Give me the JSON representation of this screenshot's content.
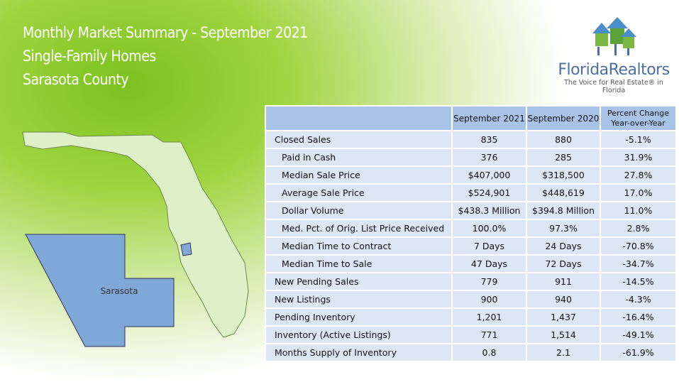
{
  "header": {
    "title_lines": [
      "Monthly Market Summary - September 2021",
      "Single-Family Homes",
      "Sarasota County"
    ]
  },
  "logo": {
    "name": "FloridaRealtors",
    "tagline": "The Voice for Real Estate® in Florida"
  },
  "map": {
    "label": "Sarasota"
  },
  "table": {
    "columns": [
      "September 2021",
      "September 2020",
      "Percent Change Year-over-Year"
    ],
    "rows": [
      [
        "Closed Sales",
        "835",
        "880",
        "-5.1%"
      ],
      [
        "Paid in Cash",
        "376",
        "285",
        "31.9%"
      ],
      [
        "Median Sale Price",
        "$407,000",
        "$318,500",
        "27.8%"
      ],
      [
        "Average Sale Price",
        "$524,901",
        "$448,619",
        "17.0%"
      ],
      [
        "Dollar Volume",
        "$438.3 Million",
        "$394.8 Million",
        "11.0%"
      ],
      [
        "Med. Pct. of Orig. List Price Received",
        "100.0%",
        "97.3%",
        "2.8%"
      ],
      [
        "Median Time to Contract",
        "7 Days",
        "24 Days",
        "-70.8%"
      ],
      [
        "Median Time to Sale",
        "47 Days",
        "72 Days",
        "-34.7%"
      ],
      [
        "New Pending Sales",
        "779",
        "911",
        "-14.5%"
      ],
      [
        "New Listings",
        "900",
        "940",
        "-4.3%"
      ],
      [
        "Pending Inventory",
        "1,201",
        "1,437",
        "-16.4%"
      ],
      [
        "Inventory (Active Listings)",
        "771",
        "1,514",
        "-49.1%"
      ],
      [
        "Months Supply of Inventory",
        "0.8",
        "2.1",
        "-61.9%"
      ]
    ]
  }
}
